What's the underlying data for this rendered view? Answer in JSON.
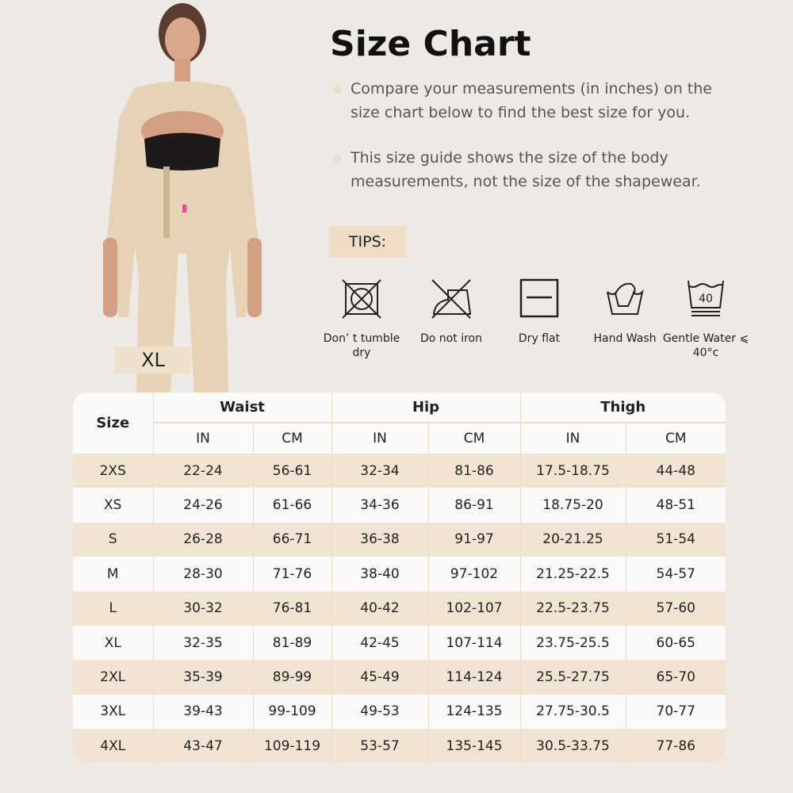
{
  "title": "Size Chart",
  "bullets": [
    "Compare your measurements (in inches) on the size chart below to find the best size for you.",
    "This size guide shows the size of the body measurements, not the size of the shapewear."
  ],
  "model_size_label": "XL",
  "tips_label": "TIPS:",
  "care": [
    {
      "icon": "no-tumble-dry-icon",
      "label": "Don’ t tumble dry"
    },
    {
      "icon": "no-iron-icon",
      "label": "Do not iron"
    },
    {
      "icon": "dry-flat-icon",
      "label": "Dry flat"
    },
    {
      "icon": "hand-wash-icon",
      "label": "Hand Wash"
    },
    {
      "icon": "gentle-wash-40-icon",
      "label": "Gentle Water ⩽ 40°c",
      "badge": "40"
    }
  ],
  "colors": {
    "background": "#edeae6",
    "accent": "#efdcc4",
    "row_highlight": "#f2e4d3"
  },
  "table": {
    "size_header": "Size",
    "groups": [
      "Waist",
      "Hip",
      "Thigh"
    ],
    "units": [
      "IN",
      "CM",
      "IN",
      "CM",
      "IN",
      "CM"
    ],
    "rows": [
      [
        "2XS",
        "22-24",
        "56-61",
        "32-34",
        "81-86",
        "17.5-18.75",
        "44-48"
      ],
      [
        "XS",
        "24-26",
        "61-66",
        "34-36",
        "86-91",
        "18.75-20",
        "48-51"
      ],
      [
        "S",
        "26-28",
        "66-71",
        "36-38",
        "91-97",
        "20-21.25",
        "51-54"
      ],
      [
        "M",
        "28-30",
        "71-76",
        "38-40",
        "97-102",
        "21.25-22.5",
        "54-57"
      ],
      [
        "L",
        "30-32",
        "76-81",
        "40-42",
        "102-107",
        "22.5-23.75",
        "57-60"
      ],
      [
        "XL",
        "32-35",
        "81-89",
        "42-45",
        "107-114",
        "23.75-25.5",
        "60-65"
      ],
      [
        "2XL",
        "35-39",
        "89-99",
        "45-49",
        "114-124",
        "25.5-27.75",
        "65-70"
      ],
      [
        "3XL",
        "39-43",
        "99-109",
        "49-53",
        "124-135",
        "27.75-30.5",
        "70-77"
      ],
      [
        "4XL",
        "43-47",
        "109-119",
        "53-57",
        "135-145",
        "30.5-33.75",
        "77-86"
      ]
    ]
  }
}
